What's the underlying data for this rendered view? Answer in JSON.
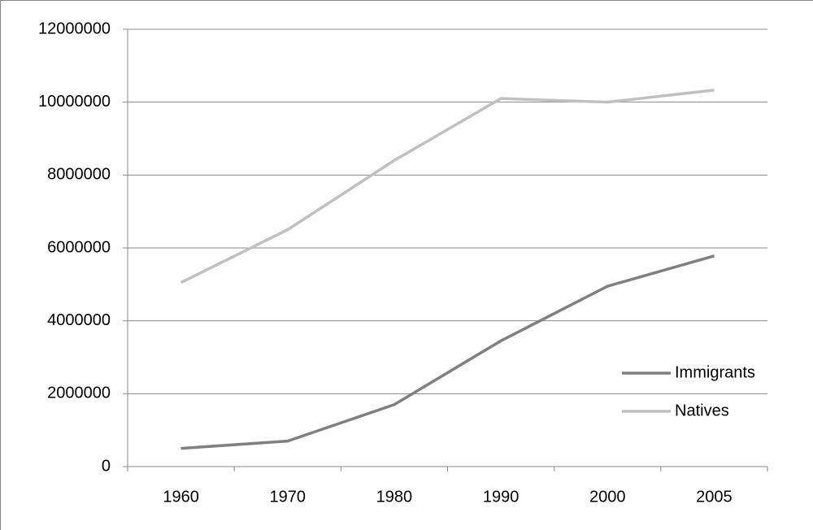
{
  "chart_data": {
    "type": "line",
    "categories": [
      "1960",
      "1970",
      "1980",
      "1990",
      "2000",
      "2005"
    ],
    "series": [
      {
        "name": "Immigrants",
        "color": "#808080",
        "values": [
          500000,
          700000,
          1700000,
          3450000,
          4950000,
          5780000
        ]
      },
      {
        "name": "Natives",
        "color": "#c0c0c0",
        "values": [
          5050000,
          6500000,
          8400000,
          10100000,
          10000000,
          10330000
        ]
      }
    ],
    "ylim": [
      0,
      12000000
    ],
    "yticks": [
      0,
      2000000,
      4000000,
      6000000,
      8000000,
      10000000,
      12000000
    ],
    "grid": true,
    "legend": "right"
  }
}
